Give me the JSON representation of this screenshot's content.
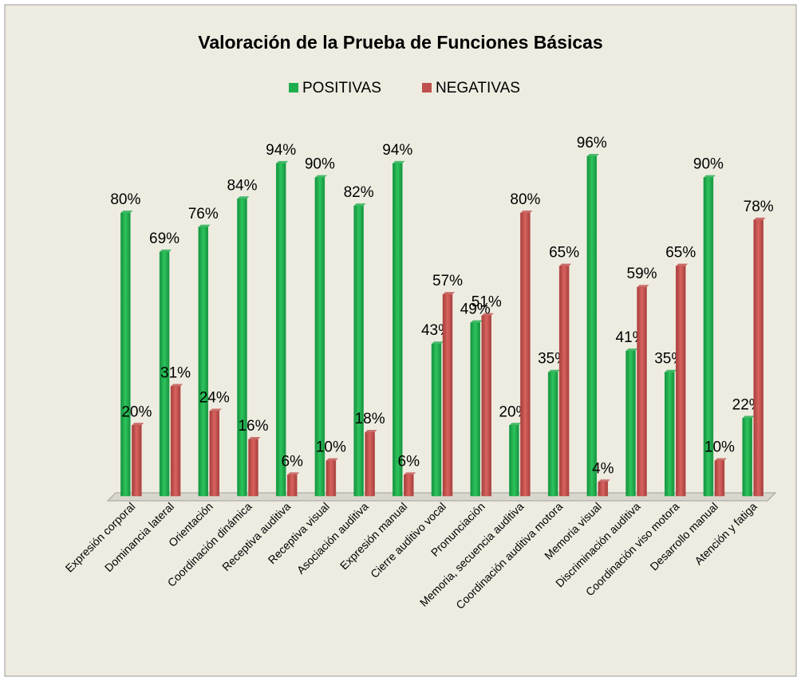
{
  "chart_data": {
    "type": "bar",
    "title": "Valoración  de la Prueba de Funciones Básicas",
    "categories": [
      "Expresión corporal",
      "Dominancia lateral",
      "Orientación",
      "Coordinación dinámica",
      "Receptiva auditiva",
      "Receptiva visual",
      "Asociación auditiva",
      "Expresión manual",
      "Cierre auditivo vocal",
      "Pronunciación",
      "Memoria, secuencia auditiva",
      "Coordinación auditiva motora",
      "Memoria visual",
      "Discriminación auditiva",
      "Coordinación viso motora",
      "Desarrollo manual",
      "Atención y fatiga"
    ],
    "series": [
      {
        "name": "POSITIVAS",
        "color": "#1fae4e",
        "values": [
          80,
          69,
          76,
          84,
          94,
          90,
          82,
          94,
          43,
          49,
          20,
          35,
          96,
          41,
          35,
          90,
          22
        ],
        "value_labels": [
          "80%",
          "69%",
          "76%",
          "84%",
          "94%",
          "90%",
          "82%",
          "94%",
          "43%",
          "49%",
          "20%",
          "35%",
          "96%",
          "41%",
          "35%",
          "90%",
          "22%"
        ]
      },
      {
        "name": "NEGATIVAS",
        "color": "#c0504d",
        "values": [
          20,
          31,
          24,
          16,
          6,
          10,
          18,
          6,
          57,
          51,
          80,
          65,
          4,
          59,
          65,
          10,
          78
        ],
        "value_labels": [
          "20%",
          "31%",
          "24%",
          "16%",
          "6%",
          "10%",
          "18%",
          "6%",
          "57%",
          "51%",
          "80%",
          "65%",
          "4%",
          "59%",
          "65%",
          "10%",
          "78%"
        ]
      }
    ],
    "legend": "top"
  }
}
